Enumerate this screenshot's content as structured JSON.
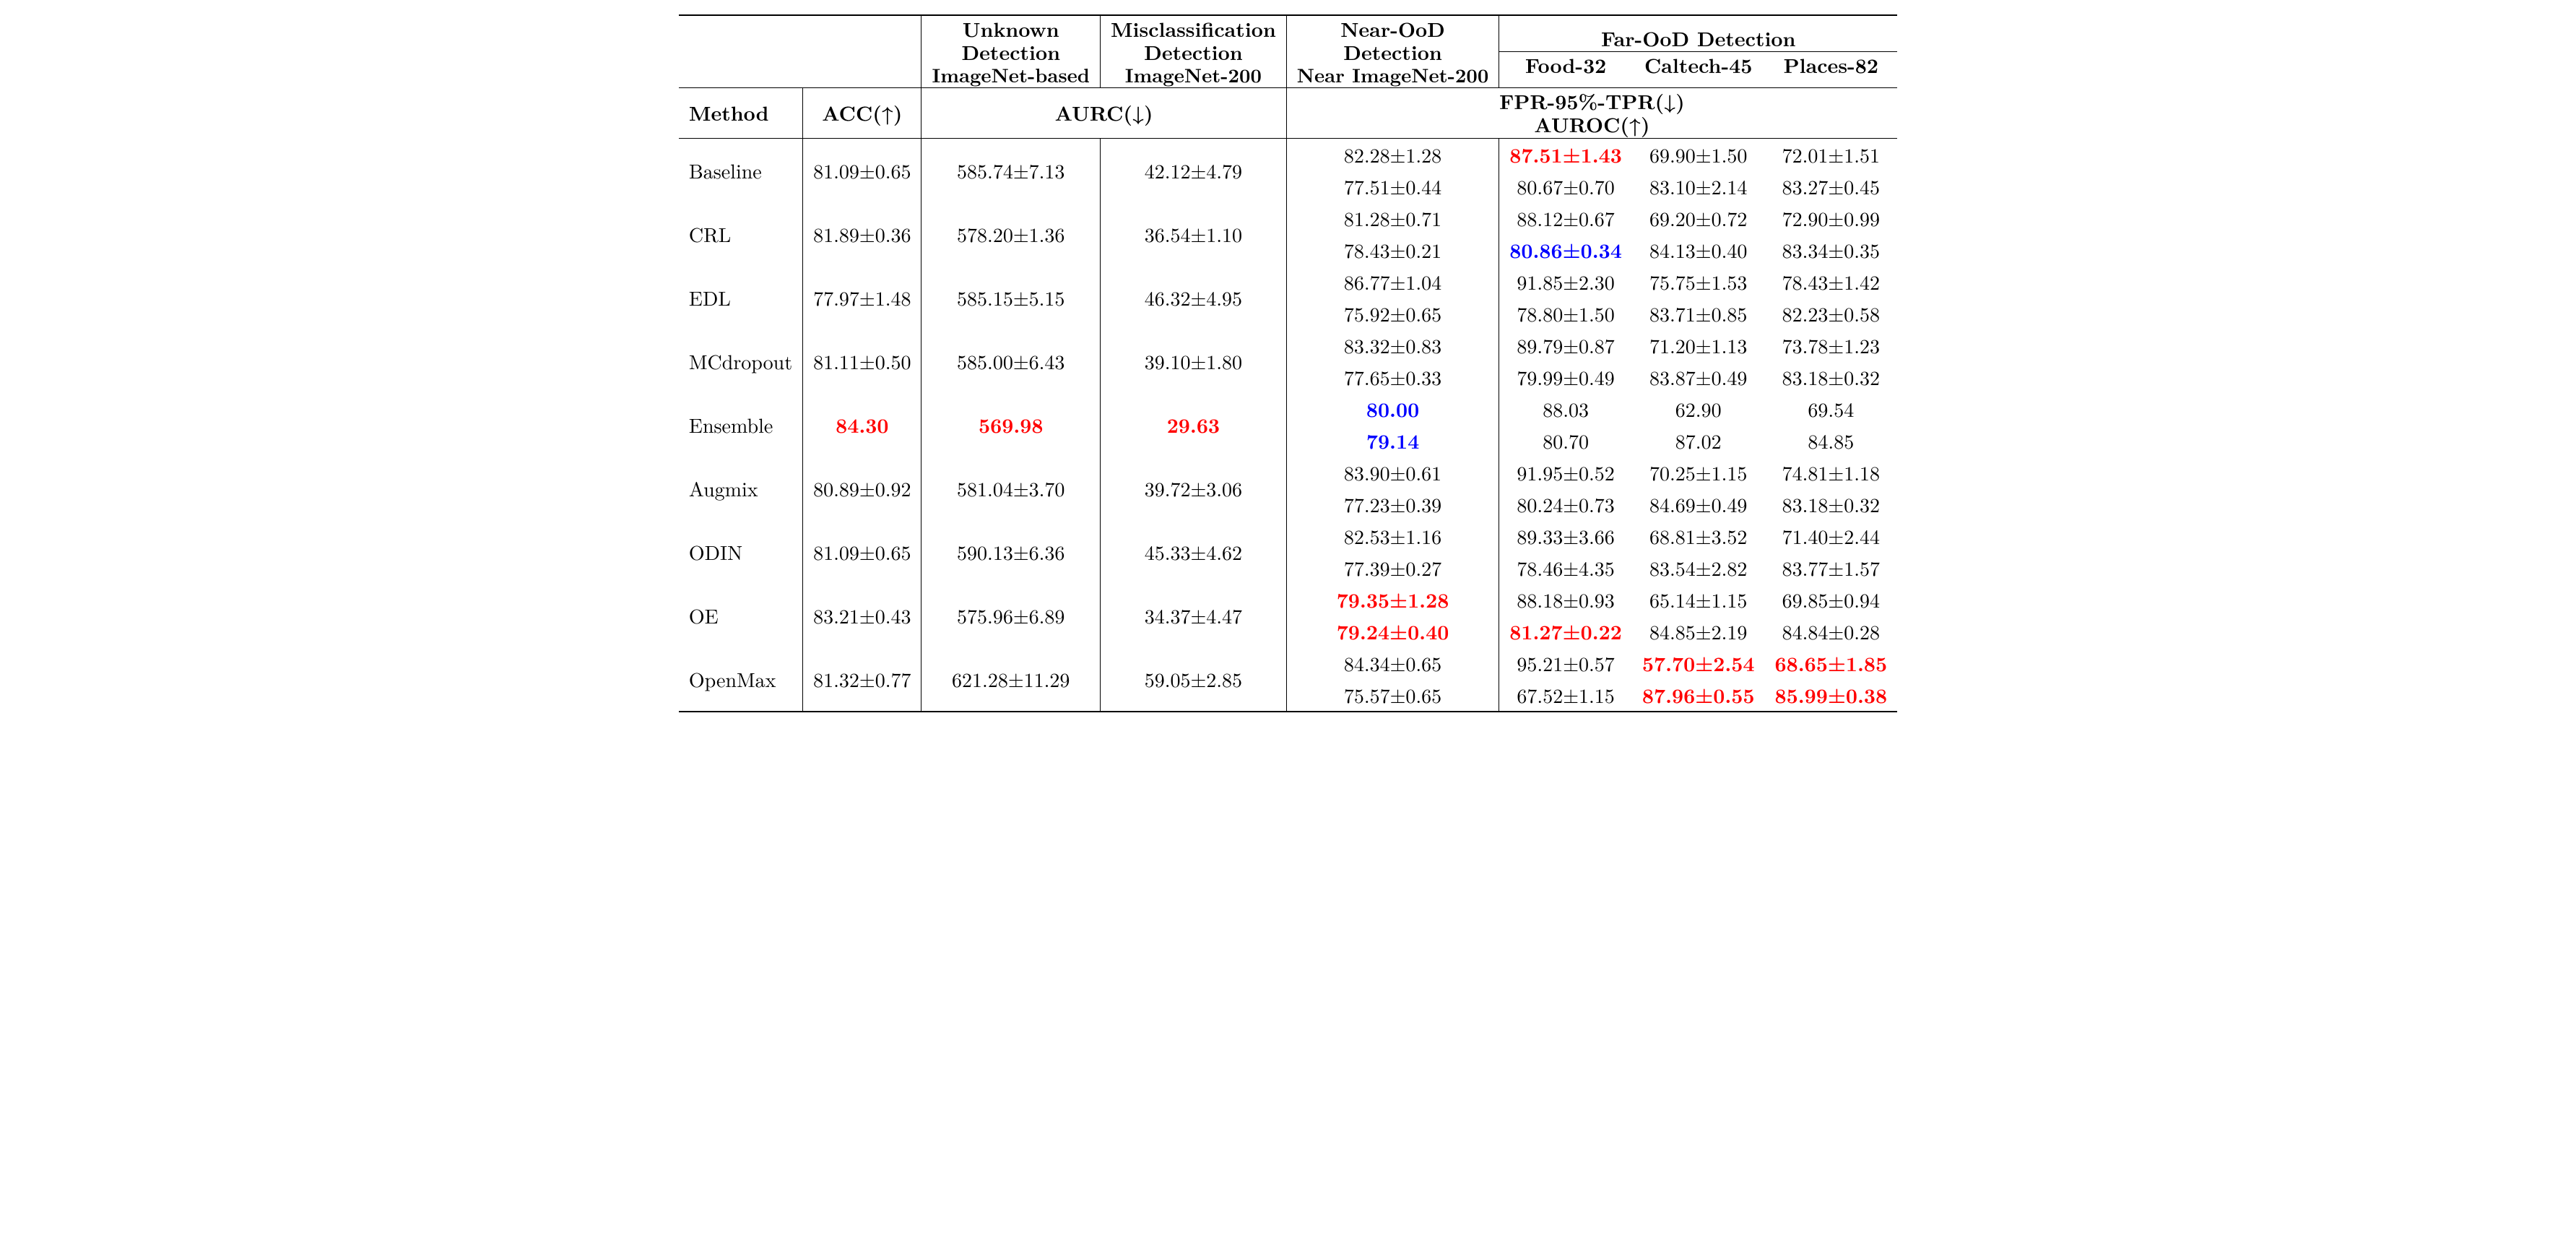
{
  "header": {
    "unknown_line1": "Unknown",
    "unknown_line2": "Detection",
    "unknown_line3": "ImageNet-based",
    "misclass_line1": "Misclassification",
    "misclass_line2": "Detection",
    "misclass_line3": "ImageNet-200",
    "nearood_line1": "Near-OoD",
    "nearood_line2": "Detection",
    "nearood_line3": "Near ImageNet-200",
    "farood_title": "Far-OoD Detection",
    "food": "Food-32",
    "caltech": "Caltech-45",
    "places": "Places-82",
    "method": "Method",
    "acc": "ACC(↑)",
    "aurc": "AURC(↓)",
    "fpr_line1": "FPR-95%-TPR(↓)",
    "fpr_line2": "AUROC(↑)"
  },
  "rows": [
    {
      "method": "Baseline",
      "acc": {
        "v": "81.09±0.65"
      },
      "aurc_unknown": {
        "v": "585.74±7.13"
      },
      "aurc_mis": {
        "v": "42.12±4.79"
      },
      "near": [
        {
          "v": "82.28±1.28"
        },
        {
          "v": "77.51±0.44"
        }
      ],
      "food": [
        {
          "v": "87.51±1.43",
          "c": "red"
        },
        {
          "v": "80.67±0.70"
        }
      ],
      "caltech": [
        {
          "v": "69.90±1.50"
        },
        {
          "v": "83.10±2.14"
        }
      ],
      "places": [
        {
          "v": "72.01±1.51"
        },
        {
          "v": "83.27±0.45"
        }
      ]
    },
    {
      "method": "CRL",
      "acc": {
        "v": "81.89±0.36"
      },
      "aurc_unknown": {
        "v": "578.20±1.36"
      },
      "aurc_mis": {
        "v": "36.54±1.10"
      },
      "near": [
        {
          "v": "81.28±0.71"
        },
        {
          "v": "78.43±0.21"
        }
      ],
      "food": [
        {
          "v": "88.12±0.67"
        },
        {
          "v": "80.86±0.34",
          "c": "blue"
        }
      ],
      "caltech": [
        {
          "v": "69.20±0.72"
        },
        {
          "v": "84.13±0.40"
        }
      ],
      "places": [
        {
          "v": "72.90±0.99"
        },
        {
          "v": "83.34±0.35"
        }
      ]
    },
    {
      "method": "EDL",
      "acc": {
        "v": "77.97±1.48"
      },
      "aurc_unknown": {
        "v": "585.15±5.15"
      },
      "aurc_mis": {
        "v": "46.32±4.95"
      },
      "near": [
        {
          "v": "86.77±1.04"
        },
        {
          "v": "75.92±0.65"
        }
      ],
      "food": [
        {
          "v": "91.85±2.30"
        },
        {
          "v": "78.80±1.50"
        }
      ],
      "caltech": [
        {
          "v": "75.75±1.53"
        },
        {
          "v": "83.71±0.85"
        }
      ],
      "places": [
        {
          "v": "78.43±1.42"
        },
        {
          "v": "82.23±0.58"
        }
      ]
    },
    {
      "method": "MCdropout",
      "acc": {
        "v": "81.11±0.50"
      },
      "aurc_unknown": {
        "v": "585.00±6.43"
      },
      "aurc_mis": {
        "v": "39.10±1.80"
      },
      "near": [
        {
          "v": "83.32±0.83"
        },
        {
          "v": "77.65±0.33"
        }
      ],
      "food": [
        {
          "v": "89.79±0.87"
        },
        {
          "v": "79.99±0.49"
        }
      ],
      "caltech": [
        {
          "v": "71.20±1.13"
        },
        {
          "v": "83.87±0.49"
        }
      ],
      "places": [
        {
          "v": "73.78±1.23"
        },
        {
          "v": "83.18±0.32"
        }
      ]
    },
    {
      "method": "Ensemble",
      "acc": {
        "v": "84.30",
        "c": "red"
      },
      "aurc_unknown": {
        "v": "569.98",
        "c": "red"
      },
      "aurc_mis": {
        "v": "29.63",
        "c": "red"
      },
      "near": [
        {
          "v": "80.00",
          "c": "blue"
        },
        {
          "v": "79.14",
          "c": "blue"
        }
      ],
      "food": [
        {
          "v": "88.03"
        },
        {
          "v": "80.70"
        }
      ],
      "caltech": [
        {
          "v": "62.90"
        },
        {
          "v": "87.02"
        }
      ],
      "places": [
        {
          "v": "69.54"
        },
        {
          "v": "84.85"
        }
      ]
    },
    {
      "method": "Augmix",
      "acc": {
        "v": "80.89±0.92"
      },
      "aurc_unknown": {
        "v": "581.04±3.70"
      },
      "aurc_mis": {
        "v": "39.72±3.06"
      },
      "near": [
        {
          "v": "83.90±0.61"
        },
        {
          "v": "77.23±0.39"
        }
      ],
      "food": [
        {
          "v": "91.95±0.52"
        },
        {
          "v": "80.24±0.73"
        }
      ],
      "caltech": [
        {
          "v": "70.25±1.15"
        },
        {
          "v": "84.69±0.49"
        }
      ],
      "places": [
        {
          "v": "74.81±1.18"
        },
        {
          "v": "83.18±0.32"
        }
      ]
    },
    {
      "method": "ODIN",
      "acc": {
        "v": "81.09±0.65"
      },
      "aurc_unknown": {
        "v": "590.13±6.36"
      },
      "aurc_mis": {
        "v": "45.33±4.62"
      },
      "near": [
        {
          "v": "82.53±1.16"
        },
        {
          "v": "77.39±0.27"
        }
      ],
      "food": [
        {
          "v": "89.33±3.66"
        },
        {
          "v": "78.46±4.35"
        }
      ],
      "caltech": [
        {
          "v": "68.81±3.52"
        },
        {
          "v": "83.54±2.82"
        }
      ],
      "places": [
        {
          "v": "71.40±2.44"
        },
        {
          "v": "83.77±1.57"
        }
      ]
    },
    {
      "method": "OE",
      "acc": {
        "v": "83.21±0.43"
      },
      "aurc_unknown": {
        "v": "575.96±6.89"
      },
      "aurc_mis": {
        "v": "34.37±4.47"
      },
      "near": [
        {
          "v": "79.35±1.28",
          "c": "red"
        },
        {
          "v": "79.24±0.40",
          "c": "red"
        }
      ],
      "food": [
        {
          "v": "88.18±0.93"
        },
        {
          "v": "81.27±0.22",
          "c": "red"
        }
      ],
      "caltech": [
        {
          "v": "65.14±1.15"
        },
        {
          "v": "84.85±2.19"
        }
      ],
      "places": [
        {
          "v": "69.85±0.94"
        },
        {
          "v": "84.84±0.28"
        }
      ]
    },
    {
      "method": "OpenMax",
      "acc": {
        "v": "81.32±0.77"
      },
      "aurc_unknown": {
        "v": "621.28±11.29"
      },
      "aurc_mis": {
        "v": "59.05±2.85"
      },
      "near": [
        {
          "v": "84.34±0.65"
        },
        {
          "v": "75.57±0.65"
        }
      ],
      "food": [
        {
          "v": "95.21±0.57"
        },
        {
          "v": "67.52±1.15"
        }
      ],
      "caltech": [
        {
          "v": "57.70±2.54",
          "c": "red"
        },
        {
          "v": "87.96±0.55",
          "c": "red"
        }
      ],
      "places": [
        {
          "v": "68.65±1.85",
          "c": "red"
        },
        {
          "v": "85.99±0.38",
          "c": "red"
        }
      ]
    }
  ]
}
